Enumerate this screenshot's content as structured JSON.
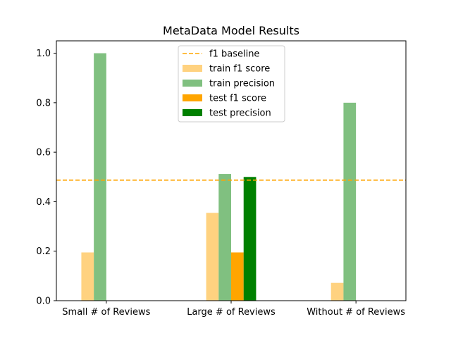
{
  "chart_data": {
    "type": "bar",
    "title": "MetaData Model Results",
    "xlabel": "",
    "ylabel": "",
    "categories": [
      "Small # of Reviews",
      "Large # of Reviews",
      "Without # of Reviews"
    ],
    "ylim": [
      0,
      1.05
    ],
    "yticks": [
      0.0,
      0.2,
      0.4,
      0.6,
      0.8,
      1.0
    ],
    "ytick_labels": [
      "0.0",
      "0.2",
      "0.4",
      "0.6",
      "0.8",
      "1.0"
    ],
    "grid": false,
    "legend_position": "top-center",
    "series": [
      {
        "name": "train f1 score",
        "color": "#ffd280",
        "values": [
          0.195,
          0.355,
          0.072
        ]
      },
      {
        "name": "train precision",
        "color": "#80c080",
        "values": [
          1.0,
          0.512,
          0.8
        ]
      },
      {
        "name": "test f1 score",
        "color": "#ffa500",
        "values": [
          0,
          0.195,
          0
        ]
      },
      {
        "name": "test precision",
        "color": "#008000",
        "values": [
          0,
          0.5,
          0
        ]
      }
    ],
    "baseline": {
      "name": "f1 baseline",
      "value": 0.487,
      "color": "#ffa500",
      "style": "dashed"
    }
  }
}
